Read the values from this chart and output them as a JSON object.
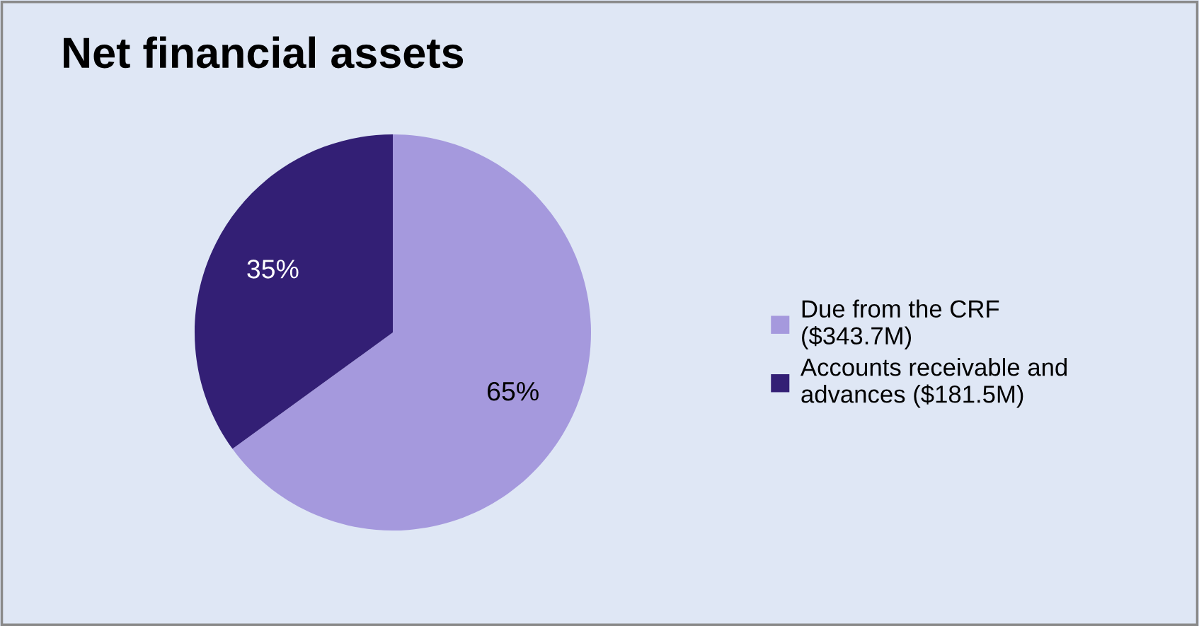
{
  "chart_data": {
    "type": "pie",
    "title": "Net financial assets",
    "categories": [
      "Due from the CRF ($343.7M)",
      "Accounts receivable and advances ($181.5M)"
    ],
    "values": [
      65,
      35
    ],
    "value_labels": [
      "65%",
      "35%"
    ],
    "colors": [
      "#a599dd",
      "#331f75"
    ],
    "legend": "right"
  }
}
